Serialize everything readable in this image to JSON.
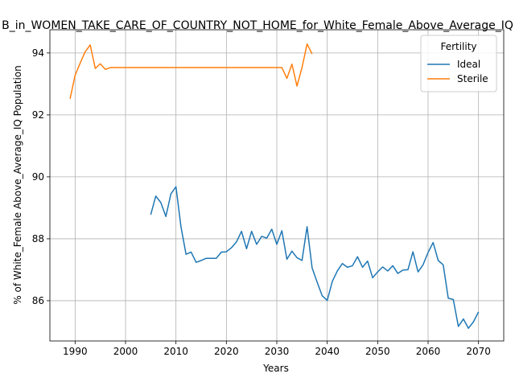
{
  "chart_data": {
    "type": "line",
    "title": "B_in_WOMEN_TAKE_CARE_OF_COUNTRY_NOT_HOME_for_White_Female_Above_Average_IQ",
    "xlabel": "Years",
    "ylabel": "% of White_Female Above_Average_IQ Population",
    "xlim": [
      1985,
      2075
    ],
    "ylim": [
      84.7,
      94.75
    ],
    "xticks": [
      1990,
      2000,
      2010,
      2020,
      2030,
      2040,
      2050,
      2060,
      2070
    ],
    "yticks": [
      86,
      88,
      90,
      92,
      94
    ],
    "grid": true,
    "legend": {
      "title": "Fertility",
      "placement": "top-right"
    },
    "series": [
      {
        "name": "Ideal",
        "color": "#1f77b4",
        "x": [
          2005,
          2006,
          2007,
          2008,
          2009,
          2010,
          2011,
          2012,
          2013,
          2014,
          2015,
          2016,
          2017,
          2018,
          2019,
          2020,
          2021,
          2022,
          2023,
          2024,
          2025,
          2026,
          2027,
          2028,
          2029,
          2030,
          2031,
          2032,
          2033,
          2034,
          2035,
          2036,
          2037,
          2038,
          2039,
          2040,
          2041,
          2042,
          2043,
          2044,
          2045,
          2046,
          2047,
          2048,
          2049,
          2050,
          2051,
          2052,
          2053,
          2054,
          2055,
          2056,
          2057,
          2058,
          2059,
          2060,
          2061,
          2062,
          2063,
          2064,
          2065,
          2066,
          2067,
          2068,
          2069,
          2070
        ],
        "values": [
          88.78,
          89.38,
          89.17,
          88.72,
          89.45,
          89.68,
          88.38,
          87.5,
          87.57,
          87.24,
          87.3,
          87.37,
          87.37,
          87.37,
          87.57,
          87.58,
          87.71,
          87.9,
          88.24,
          87.68,
          88.24,
          87.82,
          88.08,
          88.02,
          88.31,
          87.82,
          88.26,
          87.34,
          87.6,
          87.39,
          87.3,
          88.39,
          87.06,
          86.6,
          86.16,
          86.01,
          86.62,
          86.96,
          87.2,
          87.08,
          87.13,
          87.42,
          87.08,
          87.28,
          86.74,
          86.93,
          87.09,
          86.96,
          87.13,
          86.88,
          86.99,
          87.0,
          87.58,
          86.93,
          87.16,
          87.56,
          87.88,
          87.3,
          87.16,
          86.08,
          86.04,
          85.17,
          85.41,
          85.11,
          85.32,
          85.64
        ]
      },
      {
        "name": "Sterile",
        "color": "#ff7f0e",
        "x": [
          1989,
          1990,
          1991,
          1992,
          1993,
          1994,
          1995,
          1996,
          1997,
          1998,
          1999,
          2000,
          2001,
          2002,
          2003,
          2004,
          2005,
          2006,
          2007,
          2008,
          2009,
          2010,
          2011,
          2012,
          2013,
          2014,
          2015,
          2016,
          2017,
          2018,
          2019,
          2020,
          2021,
          2022,
          2023,
          2024,
          2025,
          2026,
          2027,
          2028,
          2029,
          2030,
          2031,
          2032,
          2033,
          2034,
          2035,
          2036,
          2037
        ],
        "values": [
          92.52,
          93.28,
          93.67,
          94.04,
          94.26,
          93.5,
          93.65,
          93.47,
          93.53,
          93.53,
          93.53,
          93.53,
          93.53,
          93.53,
          93.53,
          93.53,
          93.53,
          93.53,
          93.53,
          93.53,
          93.53,
          93.53,
          93.53,
          93.53,
          93.53,
          93.53,
          93.53,
          93.53,
          93.53,
          93.53,
          93.53,
          93.53,
          93.53,
          93.53,
          93.53,
          93.53,
          93.53,
          93.53,
          93.53,
          93.53,
          93.53,
          93.53,
          93.53,
          93.18,
          93.64,
          92.93,
          93.53,
          94.29,
          93.97
        ]
      }
    ]
  }
}
